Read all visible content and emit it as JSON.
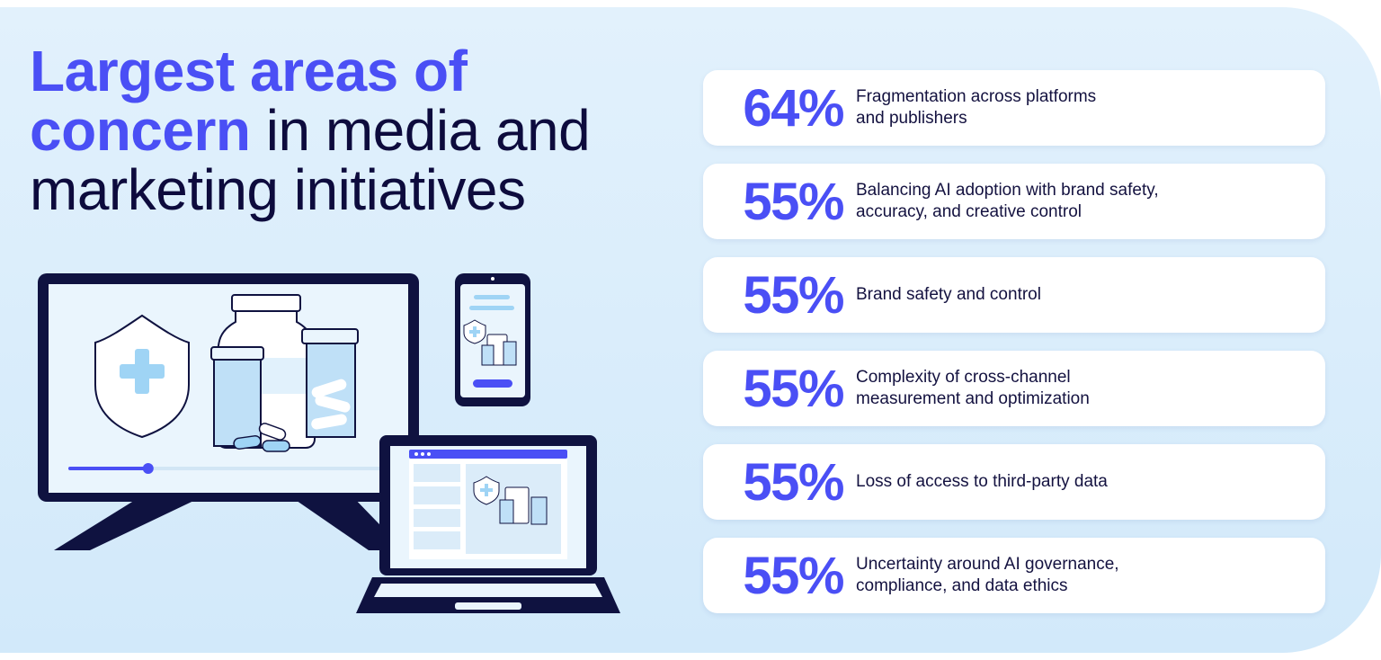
{
  "headline": {
    "highlight_line1": "Largest areas of",
    "highlight_line2": "concern",
    "rest": "in media and marketing initiatives"
  },
  "stats": [
    {
      "value": "64%",
      "label": "Fragmentation across platforms and publishers"
    },
    {
      "value": "55%",
      "label": "Balancing AI adoption with brand safety, accuracy, and creative control"
    },
    {
      "value": "55%",
      "label": "Brand safety and control"
    },
    {
      "value": "55%",
      "label": "Complexity of cross-channel measurement and optimization"
    },
    {
      "value": "55%",
      "label": "Loss of access to third-party data"
    },
    {
      "value": "55%",
      "label": "Uncertainty around AI governance, compliance, and data ethics"
    }
  ],
  "illustration": {
    "icons": [
      "monitor-icon",
      "shield-plus-icon",
      "medicine-bottle-icon",
      "phone-icon",
      "laptop-icon"
    ],
    "video_progress": 0.24,
    "colors": {
      "accent": "#4a4ff5",
      "navy": "#0f1240",
      "screen": "#eaf5fd",
      "light_blue": "#bfe0f7"
    }
  }
}
